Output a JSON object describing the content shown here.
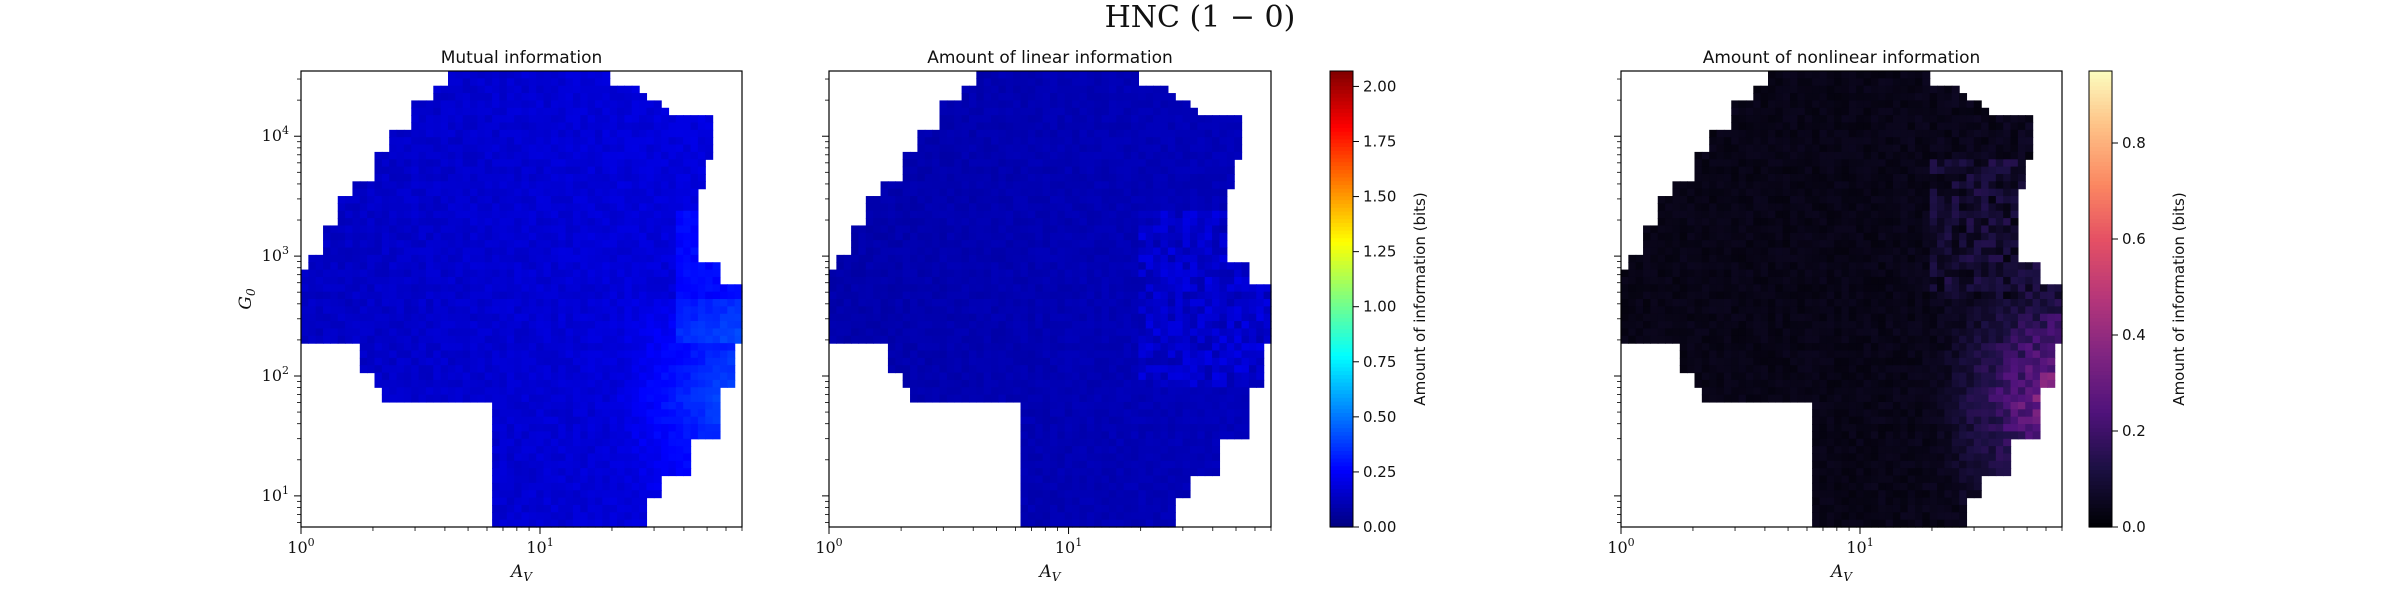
{
  "figure": {
    "suptitle": "HNC (1 − 0)"
  },
  "chart_data": [
    {
      "type": "heatmap",
      "title": "Mutual information",
      "xlabel": "A_V",
      "ylabel": "G_0",
      "x_scale": "log",
      "y_scale": "log",
      "xlim": [
        1,
        70
      ],
      "ylim": [
        5.5,
        35000
      ],
      "x_tick_labels": [
        "10^0",
        "10^1"
      ],
      "y_tick_labels": [
        "10^1",
        "10^2",
        "10^3",
        "10^4"
      ],
      "colormap": "jet",
      "colorbar_range": [
        0.0,
        2.07
      ],
      "typical_value_range_bits": [
        0.1,
        0.5
      ],
      "max_value_bits": 0.5,
      "max_location": {
        "A_V": 68,
        "G_0": 50
      }
    },
    {
      "type": "heatmap",
      "title": "Amount of linear information",
      "xlabel": "A_V",
      "ylabel": "",
      "x_scale": "log",
      "y_scale": "log",
      "xlim": [
        1,
        70
      ],
      "ylim": [
        5.5,
        35000
      ],
      "x_tick_labels": [
        "10^0",
        "10^1"
      ],
      "colormap": "jet",
      "colorbar_range": [
        0.0,
        2.07
      ],
      "colorbar_label": "Amount of information (bits)",
      "colorbar_ticks": [
        "0.00",
        "0.25",
        "0.50",
        "0.75",
        "1.00",
        "1.25",
        "1.50",
        "1.75",
        "2.00"
      ],
      "colorbar_tick_values": [
        0,
        0.25,
        0.5,
        0.75,
        1.0,
        1.25,
        1.5,
        1.75,
        2.0
      ],
      "typical_value_range_bits": [
        0.05,
        0.3
      ]
    },
    {
      "type": "heatmap",
      "title": "Amount of nonlinear information",
      "xlabel": "A_V",
      "ylabel": "",
      "x_scale": "log",
      "y_scale": "log",
      "xlim": [
        1,
        70
      ],
      "ylim": [
        5.5,
        35000
      ],
      "x_tick_labels": [
        "10^0",
        "10^1"
      ],
      "colormap": "magma",
      "colorbar_range": [
        0.0,
        0.95
      ],
      "colorbar_label": "Amount of information (bits)",
      "colorbar_ticks": [
        "0.0",
        "0.2",
        "0.4",
        "0.6",
        "0.8"
      ],
      "colorbar_tick_values": [
        0,
        0.2,
        0.4,
        0.6,
        0.8
      ],
      "typical_value_range_bits": [
        0.0,
        0.1
      ],
      "max_value_bits": 0.45,
      "max_location": {
        "A_V": 68,
        "G_0": 50
      }
    }
  ],
  "colors": {
    "missing_data": "#ffffff",
    "axis": "#000000"
  }
}
